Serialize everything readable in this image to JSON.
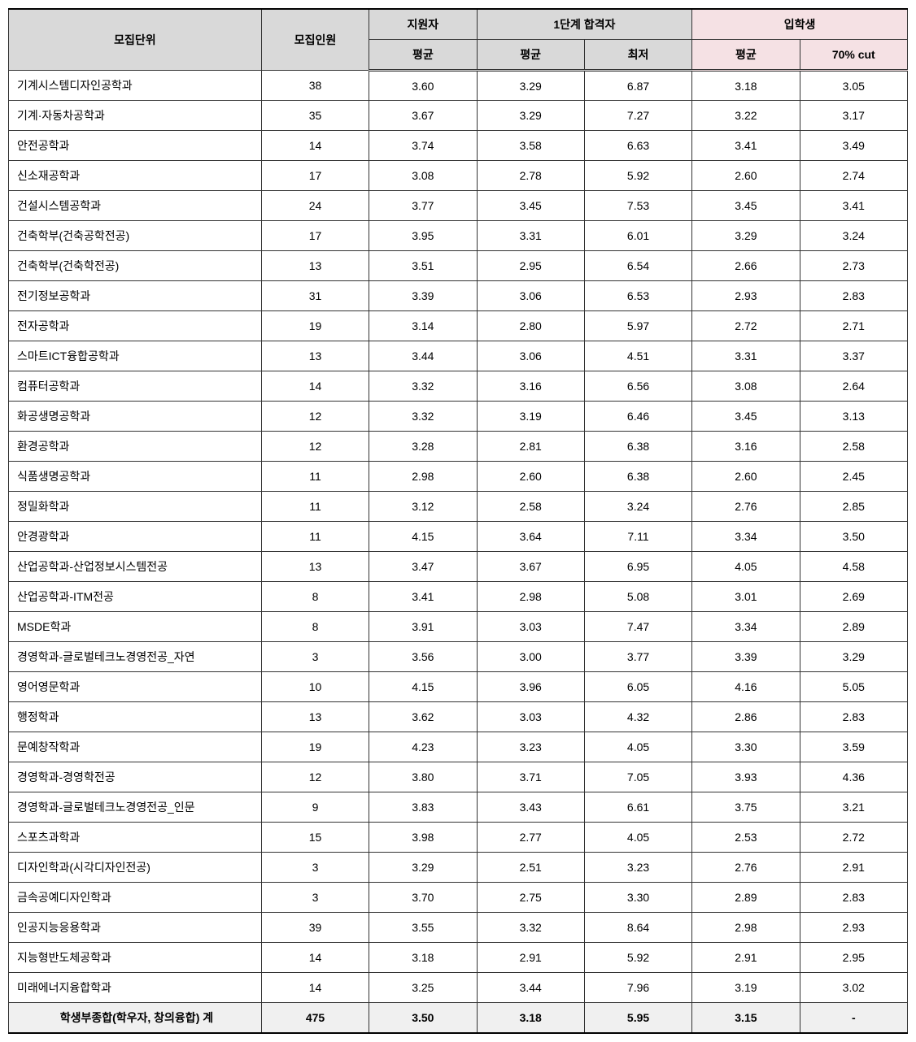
{
  "headers": {
    "dept": "모집단위",
    "quota": "모집인원",
    "applicants": "지원자",
    "stage1": "1단계 합격자",
    "enrolled": "입학생",
    "avg": "평균",
    "min": "최저",
    "cut70": "70% cut"
  },
  "colors": {
    "gray": "#d9d9d9",
    "pink": "#f5e1e4",
    "border": "#333333",
    "summary_bg": "#f0f0f0"
  },
  "rows": [
    {
      "dept": "기계시스템디자인공학과",
      "quota": "38",
      "app_avg": "3.60",
      "s1_avg": "3.29",
      "s1_min": "6.87",
      "en_avg": "3.18",
      "en_cut": "3.05"
    },
    {
      "dept": "기계·자동차공학과",
      "quota": "35",
      "app_avg": "3.67",
      "s1_avg": "3.29",
      "s1_min": "7.27",
      "en_avg": "3.22",
      "en_cut": "3.17"
    },
    {
      "dept": "안전공학과",
      "quota": "14",
      "app_avg": "3.74",
      "s1_avg": "3.58",
      "s1_min": "6.63",
      "en_avg": "3.41",
      "en_cut": "3.49"
    },
    {
      "dept": "신소재공학과",
      "quota": "17",
      "app_avg": "3.08",
      "s1_avg": "2.78",
      "s1_min": "5.92",
      "en_avg": "2.60",
      "en_cut": "2.74"
    },
    {
      "dept": "건설시스템공학과",
      "quota": "24",
      "app_avg": "3.77",
      "s1_avg": "3.45",
      "s1_min": "7.53",
      "en_avg": "3.45",
      "en_cut": "3.41"
    },
    {
      "dept": "건축학부(건축공학전공)",
      "quota": "17",
      "app_avg": "3.95",
      "s1_avg": "3.31",
      "s1_min": "6.01",
      "en_avg": "3.29",
      "en_cut": "3.24"
    },
    {
      "dept": "건축학부(건축학전공)",
      "quota": "13",
      "app_avg": "3.51",
      "s1_avg": "2.95",
      "s1_min": "6.54",
      "en_avg": "2.66",
      "en_cut": "2.73"
    },
    {
      "dept": "전기정보공학과",
      "quota": "31",
      "app_avg": "3.39",
      "s1_avg": "3.06",
      "s1_min": "6.53",
      "en_avg": "2.93",
      "en_cut": "2.83"
    },
    {
      "dept": "전자공학과",
      "quota": "19",
      "app_avg": "3.14",
      "s1_avg": "2.80",
      "s1_min": "5.97",
      "en_avg": "2.72",
      "en_cut": "2.71"
    },
    {
      "dept": "스마트ICT융합공학과",
      "quota": "13",
      "app_avg": "3.44",
      "s1_avg": "3.06",
      "s1_min": "4.51",
      "en_avg": "3.31",
      "en_cut": "3.37"
    },
    {
      "dept": "컴퓨터공학과",
      "quota": "14",
      "app_avg": "3.32",
      "s1_avg": "3.16",
      "s1_min": "6.56",
      "en_avg": "3.08",
      "en_cut": "2.64"
    },
    {
      "dept": "화공생명공학과",
      "quota": "12",
      "app_avg": "3.32",
      "s1_avg": "3.19",
      "s1_min": "6.46",
      "en_avg": "3.45",
      "en_cut": "3.13"
    },
    {
      "dept": "환경공학과",
      "quota": "12",
      "app_avg": "3.28",
      "s1_avg": "2.81",
      "s1_min": "6.38",
      "en_avg": "3.16",
      "en_cut": "2.58"
    },
    {
      "dept": "식품생명공학과",
      "quota": "11",
      "app_avg": "2.98",
      "s1_avg": "2.60",
      "s1_min": "6.38",
      "en_avg": "2.60",
      "en_cut": "2.45"
    },
    {
      "dept": "정밀화학과",
      "quota": "11",
      "app_avg": "3.12",
      "s1_avg": "2.58",
      "s1_min": "3.24",
      "en_avg": "2.76",
      "en_cut": "2.85"
    },
    {
      "dept": "안경광학과",
      "quota": "11",
      "app_avg": "4.15",
      "s1_avg": "3.64",
      "s1_min": "7.11",
      "en_avg": "3.34",
      "en_cut": "3.50"
    },
    {
      "dept": "산업공학과-산업정보시스템전공",
      "quota": "13",
      "app_avg": "3.47",
      "s1_avg": "3.67",
      "s1_min": "6.95",
      "en_avg": "4.05",
      "en_cut": "4.58"
    },
    {
      "dept": "산업공학과-ITM전공",
      "quota": "8",
      "app_avg": "3.41",
      "s1_avg": "2.98",
      "s1_min": "5.08",
      "en_avg": "3.01",
      "en_cut": "2.69"
    },
    {
      "dept": "MSDE학과",
      "quota": "8",
      "app_avg": "3.91",
      "s1_avg": "3.03",
      "s1_min": "7.47",
      "en_avg": "3.34",
      "en_cut": "2.89"
    },
    {
      "dept": "경영학과-글로벌테크노경영전공_자연",
      "quota": "3",
      "app_avg": "3.56",
      "s1_avg": "3.00",
      "s1_min": "3.77",
      "en_avg": "3.39",
      "en_cut": "3.29"
    },
    {
      "dept": "영어영문학과",
      "quota": "10",
      "app_avg": "4.15",
      "s1_avg": "3.96",
      "s1_min": "6.05",
      "en_avg": "4.16",
      "en_cut": "5.05"
    },
    {
      "dept": "행정학과",
      "quota": "13",
      "app_avg": "3.62",
      "s1_avg": "3.03",
      "s1_min": "4.32",
      "en_avg": "2.86",
      "en_cut": "2.83"
    },
    {
      "dept": "문예창작학과",
      "quota": "19",
      "app_avg": "4.23",
      "s1_avg": "3.23",
      "s1_min": "4.05",
      "en_avg": "3.30",
      "en_cut": "3.59"
    },
    {
      "dept": "경영학과-경영학전공",
      "quota": "12",
      "app_avg": "3.80",
      "s1_avg": "3.71",
      "s1_min": "7.05",
      "en_avg": "3.93",
      "en_cut": "4.36"
    },
    {
      "dept": "경영학과-글로벌테크노경영전공_인문",
      "quota": "9",
      "app_avg": "3.83",
      "s1_avg": "3.43",
      "s1_min": "6.61",
      "en_avg": "3.75",
      "en_cut": "3.21"
    },
    {
      "dept": "스포츠과학과",
      "quota": "15",
      "app_avg": "3.98",
      "s1_avg": "2.77",
      "s1_min": "4.05",
      "en_avg": "2.53",
      "en_cut": "2.72"
    },
    {
      "dept": "디자인학과(시각디자인전공)",
      "quota": "3",
      "app_avg": "3.29",
      "s1_avg": "2.51",
      "s1_min": "3.23",
      "en_avg": "2.76",
      "en_cut": "2.91"
    },
    {
      "dept": "금속공예디자인학과",
      "quota": "3",
      "app_avg": "3.70",
      "s1_avg": "2.75",
      "s1_min": "3.30",
      "en_avg": "2.89",
      "en_cut": "2.83"
    },
    {
      "dept": "인공지능응용학과",
      "quota": "39",
      "app_avg": "3.55",
      "s1_avg": "3.32",
      "s1_min": "8.64",
      "en_avg": "2.98",
      "en_cut": "2.93"
    },
    {
      "dept": "지능형반도체공학과",
      "quota": "14",
      "app_avg": "3.18",
      "s1_avg": "2.91",
      "s1_min": "5.92",
      "en_avg": "2.91",
      "en_cut": "2.95"
    },
    {
      "dept": "미래에너지융합학과",
      "quota": "14",
      "app_avg": "3.25",
      "s1_avg": "3.44",
      "s1_min": "7.96",
      "en_avg": "3.19",
      "en_cut": "3.02"
    }
  ],
  "summary": {
    "dept": "학생부종합(학우자, 창의융합) 계",
    "quota": "475",
    "app_avg": "3.50",
    "s1_avg": "3.18",
    "s1_min": "5.95",
    "en_avg": "3.15",
    "en_cut": "-"
  }
}
